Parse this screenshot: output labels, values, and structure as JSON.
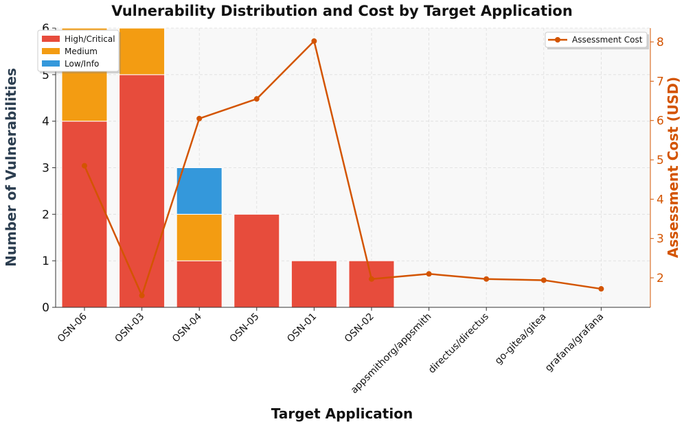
{
  "chart_data": {
    "type": "bar",
    "title": "Vulnerability Distribution and Cost by Target Application",
    "xlabel": "Target Application",
    "ylabel": "Number of Vulnerabilities",
    "y2label": "Assessment Cost (USD)",
    "categories": [
      "OSN-06",
      "OSN-03",
      "OSN-04",
      "OSN-05",
      "OSN-01",
      "OSN-02",
      "appsmithorg/appsmith",
      "directus/directus",
      "go-gitea/gitea",
      "grafana/grafana"
    ],
    "ylim": [
      0,
      6
    ],
    "yticks": [
      0,
      1,
      2,
      3,
      4,
      5,
      6
    ],
    "y2lim": [
      1.25,
      8.35
    ],
    "y2ticks": [
      2,
      3,
      4,
      5,
      6,
      7,
      8
    ],
    "stacked": true,
    "series": [
      {
        "name": "High/Critical",
        "color": "#e74c3c",
        "values": [
          4,
          5,
          1,
          2,
          1,
          1,
          0,
          0,
          0,
          0
        ]
      },
      {
        "name": "Medium",
        "color": "#f39c12",
        "values": [
          2,
          1,
          1,
          0,
          0,
          0,
          0,
          0,
          0,
          0
        ]
      },
      {
        "name": "Low/Info",
        "color": "#3498db",
        "values": [
          0,
          0,
          1,
          0,
          0,
          0,
          0,
          0,
          0,
          0
        ]
      }
    ],
    "line_series": {
      "name": "Assessment Cost",
      "color": "#d35400",
      "axis": "right",
      "values": [
        4.85,
        1.55,
        6.05,
        6.55,
        8.02,
        1.97,
        2.1,
        1.97,
        1.94,
        1.72
      ]
    },
    "legend_left_position": "upper-left",
    "legend_right_position": "upper-right",
    "grid": true
  }
}
